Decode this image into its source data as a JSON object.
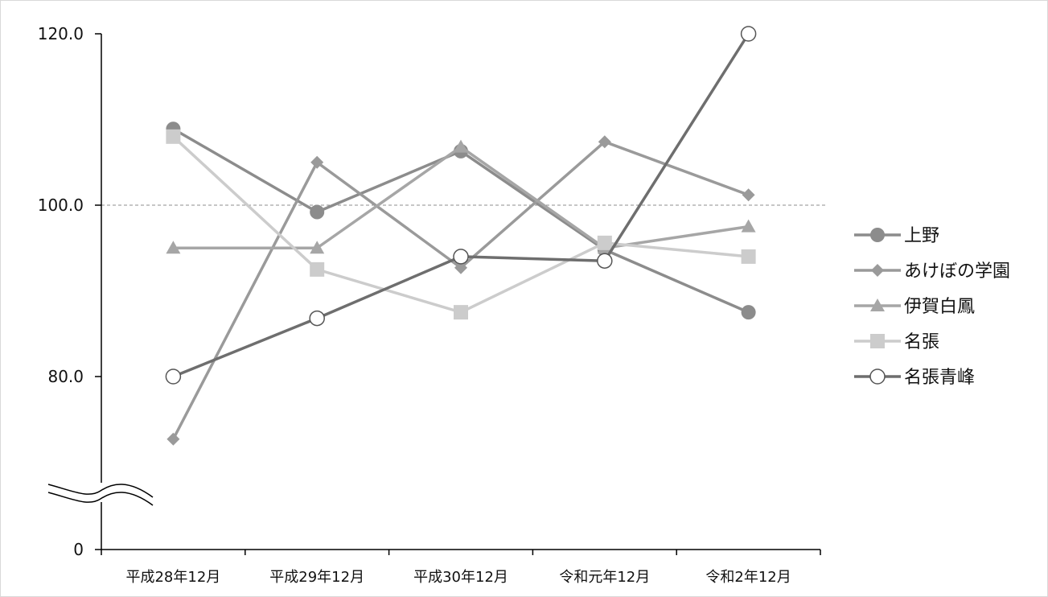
{
  "chart_data": {
    "type": "line",
    "categories": [
      "平成28年12月",
      "平成29年12月",
      "平成30年12月",
      "令和元年12月",
      "令和2年12月"
    ],
    "y_ticks": [
      "120.0",
      "100.0",
      "80.0",
      "0"
    ],
    "ylim": [
      0,
      120
    ],
    "axis_break": true,
    "reference_line": 100,
    "legend_position": "right",
    "series": [
      {
        "name": "上野",
        "marker": "circle",
        "color": "#8c8c8c",
        "values": [
          108.9,
          99.2,
          106.3,
          94.8,
          87.5
        ]
      },
      {
        "name": "あけぼの学園",
        "marker": "diamond",
        "color": "#9a9a9a",
        "values": [
          72.7,
          105.0,
          92.7,
          107.4,
          101.2
        ]
      },
      {
        "name": "伊賀白鳳",
        "marker": "triangle",
        "color": "#a6a6a6",
        "values": [
          95.0,
          95.0,
          106.8,
          95.0,
          97.5
        ]
      },
      {
        "name": "名張",
        "marker": "square",
        "color": "#cccccc",
        "values": [
          108.0,
          92.5,
          87.5,
          95.6,
          94.0
        ]
      },
      {
        "name": "名張青峰",
        "marker": "open-circle",
        "color": "#737373",
        "values": [
          80.0,
          86.8,
          94.0,
          93.5,
          120.0
        ]
      }
    ]
  }
}
